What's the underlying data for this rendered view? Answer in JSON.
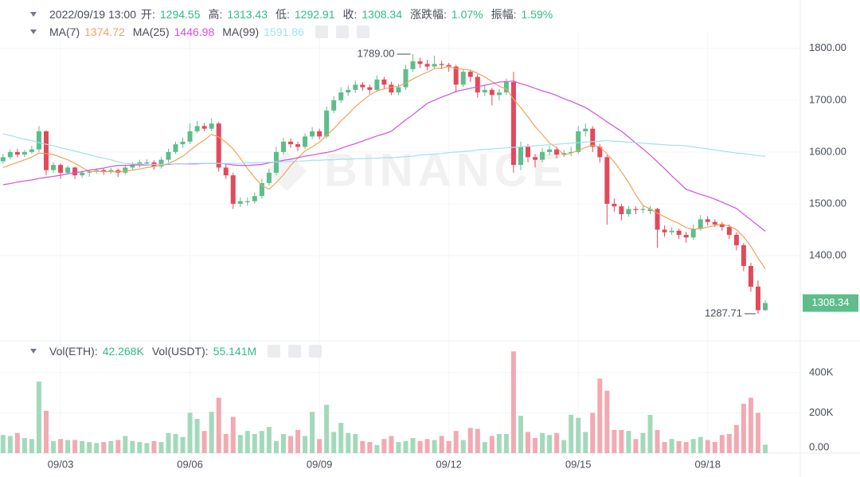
{
  "header": {
    "time": "2022/09/19 13:00",
    "open_label": "开:",
    "high_label": "高:",
    "low_label": "低:",
    "close_label": "收:",
    "change_label": "涨跌幅:",
    "change": "1.07%",
    "amplitude_label": "振幅:",
    "amplitude": "1.59%"
  },
  "chart_data": [
    {
      "type": "candlestick",
      "watermark": "BINANCE",
      "grid": true,
      "up_color": "#5ebd8a",
      "down_color": "#e2495b",
      "ylim": [
        1240,
        1832
      ],
      "yticks": [
        {
          "value": 1400,
          "label": "1400.00"
        },
        {
          "value": 1500,
          "label": "1500.00"
        },
        {
          "value": 1600,
          "label": "1600.00"
        },
        {
          "value": 1700,
          "label": "1700.00"
        },
        {
          "value": 1800,
          "label": "1800.00"
        }
      ],
      "annotations": [
        {
          "value": 1789,
          "label": "1789.00"
        }
      ],
      "categories": [
        null,
        null,
        null,
        null,
        null,
        null,
        null,
        null,
        "09/03",
        null,
        null,
        null,
        null,
        null,
        null,
        null,
        null,
        null,
        null,
        null,
        null,
        null,
        null,
        null,
        null,
        null,
        "09/06",
        null,
        null,
        null,
        null,
        null,
        null,
        null,
        null,
        null,
        null,
        null,
        null,
        null,
        null,
        null,
        null,
        null,
        "09/09",
        null,
        null,
        null,
        null,
        null,
        null,
        null,
        null,
        null,
        null,
        null,
        null,
        null,
        null,
        null,
        null,
        null,
        "09/12",
        null,
        null,
        null,
        null,
        null,
        null,
        null,
        null,
        null,
        null,
        null,
        null,
        null,
        null,
        null,
        null,
        null,
        "09/15",
        null,
        null,
        null,
        null,
        null,
        null,
        null,
        null,
        null,
        null,
        null,
        null,
        null,
        null,
        null,
        null,
        null,
        "09/18",
        null,
        null,
        null,
        null,
        null,
        null,
        null,
        null
      ],
      "ohlc": [
        [
          1582,
          1596,
          1578,
          1590
        ],
        [
          1590,
          1605,
          1586,
          1600
        ],
        [
          1600,
          1606,
          1590,
          1595
        ],
        [
          1595,
          1604,
          1590,
          1600
        ],
        [
          1600,
          1612,
          1596,
          1605
        ],
        [
          1605,
          1650,
          1600,
          1640
        ],
        [
          1640,
          1642,
          1555,
          1565
        ],
        [
          1565,
          1580,
          1560,
          1575
        ],
        [
          1575,
          1578,
          1548,
          1560
        ],
        [
          1560,
          1574,
          1556,
          1570
        ],
        [
          1570,
          1572,
          1548,
          1555
        ],
        [
          1555,
          1564,
          1550,
          1560
        ],
        [
          1560,
          1566,
          1552,
          1562
        ],
        [
          1562,
          1568,
          1558,
          1565
        ],
        [
          1565,
          1568,
          1556,
          1562
        ],
        [
          1562,
          1570,
          1558,
          1565
        ],
        [
          1565,
          1568,
          1552,
          1560
        ],
        [
          1560,
          1576,
          1556,
          1570
        ],
        [
          1570,
          1580,
          1566,
          1575
        ],
        [
          1575,
          1585,
          1570,
          1580
        ],
        [
          1578,
          1586,
          1574,
          1580
        ],
        [
          1580,
          1584,
          1566,
          1572
        ],
        [
          1572,
          1590,
          1568,
          1585
        ],
        [
          1585,
          1606,
          1580,
          1600
        ],
        [
          1600,
          1620,
          1596,
          1615
        ],
        [
          1615,
          1628,
          1608,
          1620
        ],
        [
          1620,
          1655,
          1616,
          1640
        ],
        [
          1640,
          1660,
          1636,
          1650
        ],
        [
          1650,
          1656,
          1640,
          1645
        ],
        [
          1645,
          1665,
          1640,
          1655
        ],
        [
          1655,
          1658,
          1562,
          1570
        ],
        [
          1570,
          1578,
          1548,
          1555
        ],
        [
          1555,
          1560,
          1490,
          1500
        ],
        [
          1500,
          1512,
          1494,
          1505
        ],
        [
          1503,
          1512,
          1496,
          1505
        ],
        [
          1505,
          1522,
          1500,
          1515
        ],
        [
          1515,
          1548,
          1510,
          1540
        ],
        [
          1540,
          1568,
          1535,
          1560
        ],
        [
          1560,
          1610,
          1555,
          1600
        ],
        [
          1600,
          1628,
          1595,
          1620
        ],
        [
          1620,
          1626,
          1608,
          1615
        ],
        [
          1615,
          1620,
          1602,
          1610
        ],
        [
          1610,
          1636,
          1606,
          1630
        ],
        [
          1630,
          1648,
          1625,
          1640
        ],
        [
          1640,
          1645,
          1624,
          1630
        ],
        [
          1630,
          1688,
          1626,
          1680
        ],
        [
          1680,
          1708,
          1675,
          1700
        ],
        [
          1700,
          1725,
          1695,
          1715
        ],
        [
          1715,
          1728,
          1708,
          1720
        ],
        [
          1720,
          1738,
          1714,
          1730
        ],
        [
          1730,
          1735,
          1718,
          1725
        ],
        [
          1725,
          1730,
          1712,
          1720
        ],
        [
          1720,
          1748,
          1716,
          1740
        ],
        [
          1740,
          1745,
          1722,
          1730
        ],
        [
          1730,
          1736,
          1710,
          1715
        ],
        [
          1715,
          1732,
          1710,
          1725
        ],
        [
          1725,
          1768,
          1720,
          1760
        ],
        [
          1760,
          1789,
          1755,
          1775
        ],
        [
          1775,
          1782,
          1762,
          1770
        ],
        [
          1770,
          1778,
          1758,
          1765
        ],
        [
          1765,
          1786,
          1760,
          1770
        ],
        [
          1770,
          1776,
          1760,
          1768
        ],
        [
          1768,
          1772,
          1755,
          1765
        ],
        [
          1765,
          1768,
          1715,
          1730
        ],
        [
          1730,
          1760,
          1725,
          1755
        ],
        [
          1755,
          1758,
          1735,
          1745
        ],
        [
          1745,
          1750,
          1705,
          1715
        ],
        [
          1715,
          1728,
          1708,
          1720
        ],
        [
          1720,
          1724,
          1690,
          1710
        ],
        [
          1710,
          1722,
          1700,
          1715
        ],
        [
          1715,
          1742,
          1710,
          1735
        ],
        [
          1735,
          1755,
          1560,
          1575
        ],
        [
          1575,
          1620,
          1565,
          1610
        ],
        [
          1610,
          1615,
          1580,
          1590
        ],
        [
          1590,
          1596,
          1570,
          1585
        ],
        [
          1585,
          1608,
          1580,
          1600
        ],
        [
          1600,
          1612,
          1594,
          1605
        ],
        [
          1605,
          1610,
          1588,
          1595
        ],
        [
          1595,
          1604,
          1590,
          1598
        ],
        [
          1598,
          1610,
          1592,
          1600
        ],
        [
          1600,
          1650,
          1596,
          1640
        ],
        [
          1640,
          1655,
          1630,
          1645
        ],
        [
          1645,
          1650,
          1600,
          1610
        ],
        [
          1610,
          1615,
          1580,
          1590
        ],
        [
          1590,
          1594,
          1460,
          1500
        ],
        [
          1500,
          1510,
          1485,
          1495
        ],
        [
          1495,
          1500,
          1468,
          1480
        ],
        [
          1480,
          1496,
          1475,
          1490
        ],
        [
          1490,
          1495,
          1480,
          1488
        ],
        [
          1488,
          1496,
          1482,
          1490
        ],
        [
          1486,
          1496,
          1480,
          1490
        ],
        [
          1490,
          1492,
          1415,
          1450
        ],
        [
          1450,
          1458,
          1436,
          1445
        ],
        [
          1445,
          1455,
          1440,
          1448
        ],
        [
          1448,
          1452,
          1432,
          1440
        ],
        [
          1440,
          1446,
          1425,
          1435
        ],
        [
          1435,
          1460,
          1430,
          1452
        ],
        [
          1452,
          1478,
          1448,
          1470
        ],
        [
          1470,
          1476,
          1458,
          1465
        ],
        [
          1465,
          1470,
          1455,
          1460
        ],
        [
          1460,
          1465,
          1448,
          1455
        ],
        [
          1455,
          1460,
          1432,
          1440
        ],
        [
          1440,
          1445,
          1410,
          1420
        ],
        [
          1420,
          1424,
          1370,
          1380
        ],
        [
          1380,
          1386,
          1330,
          1340
        ],
        [
          1340,
          1352,
          1287.71,
          1294.55
        ],
        [
          1294.55,
          1313.43,
          1292.91,
          1308.34
        ]
      ],
      "series": [
        {
          "name": "MA(7)",
          "color": "#f0a35a",
          "values": [
            1570,
            1575,
            1580,
            1585,
            1590,
            1598,
            1597,
            1595,
            1590,
            1585,
            1578,
            1570,
            1562,
            1563,
            1562,
            1562,
            1562,
            1563,
            1565,
            1567,
            1570,
            1572,
            1574,
            1578,
            1584,
            1592,
            1603,
            1614,
            1623,
            1634,
            1629,
            1619,
            1606,
            1588,
            1568,
            1551,
            1535,
            1528,
            1541,
            1556,
            1574,
            1588,
            1602,
            1610,
            1619,
            1632,
            1645,
            1660,
            1673,
            1688,
            1699,
            1710,
            1718,
            1722,
            1725,
            1727,
            1733,
            1741,
            1748,
            1754,
            1761,
            1762,
            1765,
            1761,
            1760,
            1758,
            1752,
            1745,
            1736,
            1727,
            1722,
            1702,
            1686,
            1668,
            1649,
            1634,
            1617,
            1608,
            1594,
            1598,
            1603,
            1609,
            1613,
            1610,
            1596,
            1581,
            1562,
            1541,
            1517,
            1497,
            1490,
            1482,
            1475,
            1468,
            1462,
            1454,
            1451,
            1452,
            1455,
            1458,
            1461,
            1457,
            1450,
            1436,
            1418,
            1395,
            1374.72
          ]
        },
        {
          "name": "MA(25)",
          "color": "#d54fd8",
          "values": [
            1537,
            1539,
            1542,
            1544,
            1546,
            1549,
            1551,
            1553,
            1555,
            1558,
            1560,
            1562,
            1565,
            1567,
            1569,
            1572,
            1574,
            1574,
            1575,
            1575,
            1575,
            1576,
            1576,
            1576,
            1577,
            1577,
            1577,
            1577,
            1578,
            1578,
            1578,
            1577,
            1575,
            1574,
            1574,
            1575,
            1576,
            1579,
            1581,
            1584,
            1586,
            1589,
            1592,
            1594,
            1597,
            1599,
            1602,
            1607,
            1612,
            1616,
            1621,
            1626,
            1631,
            1635,
            1640,
            1651,
            1662,
            1672,
            1683,
            1694,
            1700,
            1706,
            1711,
            1717,
            1720,
            1723,
            1726,
            1729,
            1732,
            1735,
            1736,
            1737,
            1732,
            1728,
            1723,
            1718,
            1714,
            1709,
            1703,
            1698,
            1692,
            1686,
            1677,
            1668,
            1658,
            1649,
            1640,
            1629,
            1617,
            1606,
            1594,
            1581,
            1568,
            1554,
            1541,
            1528,
            1523,
            1518,
            1514,
            1509,
            1503,
            1497,
            1491,
            1480,
            1469,
            1458,
            1446.98
          ]
        },
        {
          "name": "MA(99)",
          "color": "#9de3ef",
          "values": [
            1635,
            1632,
            1628,
            1625,
            1622,
            1618,
            1615,
            1612,
            1608,
            1605,
            1602,
            1598,
            1595,
            1591,
            1588,
            1585,
            1581,
            1578,
            1577,
            1577,
            1576,
            1576,
            1576,
            1577,
            1577,
            1577,
            1578,
            1578,
            1578,
            1578,
            1578,
            1578,
            1578,
            1578,
            1579,
            1579,
            1580,
            1580,
            1581,
            1581,
            1582,
            1582,
            1583,
            1584,
            1584,
            1585,
            1585,
            1586,
            1586,
            1587,
            1587,
            1588,
            1588,
            1589,
            1589,
            1590,
            1591,
            1592,
            1594,
            1595,
            1596,
            1597,
            1599,
            1600,
            1601,
            1602,
            1604,
            1605,
            1606,
            1607,
            1608,
            1609,
            1610,
            1611,
            1612,
            1613,
            1614,
            1615,
            1616,
            1617,
            1618,
            1619,
            1620,
            1621,
            1622,
            1621,
            1620,
            1619,
            1618,
            1617,
            1616,
            1615,
            1614,
            1613,
            1613,
            1612,
            1610,
            1608,
            1606,
            1604,
            1602,
            1600,
            1598,
            1597,
            1595,
            1593,
            1591.86
          ]
        }
      ]
    },
    {
      "type": "bar",
      "up_color": "#a3d9bb",
      "down_color": "#f2a9b2",
      "legend": [
        {
          "label": "Vol(ETH):",
          "value": "42.268K"
        },
        {
          "label": "Vol(USDT):",
          "value": "55.141M"
        }
      ],
      "ylim": [
        0,
        510000
      ],
      "yticks": [
        {
          "value": 0,
          "label": "0.00"
        },
        {
          "value": 200000,
          "label": "200K"
        },
        {
          "value": 400000,
          "label": "400K"
        }
      ],
      "values": [
        90000,
        85000,
        100000,
        75000,
        70000,
        355000,
        210000,
        60000,
        70000,
        65000,
        65000,
        60000,
        55000,
        50000,
        55000,
        60000,
        65000,
        85000,
        60000,
        55000,
        50000,
        60000,
        55000,
        100000,
        95000,
        80000,
        200000,
        170000,
        110000,
        205000,
        275000,
        95000,
        180000,
        90000,
        110000,
        95000,
        110000,
        130000,
        60000,
        95000,
        85000,
        115000,
        85000,
        205000,
        70000,
        240000,
        105000,
        150000,
        100000,
        95000,
        60000,
        55000,
        40000,
        70000,
        85000,
        55000,
        60000,
        75000,
        60000,
        70000,
        65000,
        85000,
        60000,
        110000,
        65000,
        125000,
        120000,
        55000,
        85000,
        95000,
        95000,
        505000,
        185000,
        105000,
        75000,
        100000,
        90000,
        100000,
        65000,
        190000,
        175000,
        105000,
        200000,
        370000,
        310000,
        115000,
        115000,
        110000,
        70000,
        100000,
        190000,
        115000,
        55000,
        70000,
        60000,
        55000,
        70000,
        80000,
        65000,
        55000,
        90000,
        95000,
        140000,
        245000,
        275000,
        200000,
        42268
      ]
    }
  ]
}
